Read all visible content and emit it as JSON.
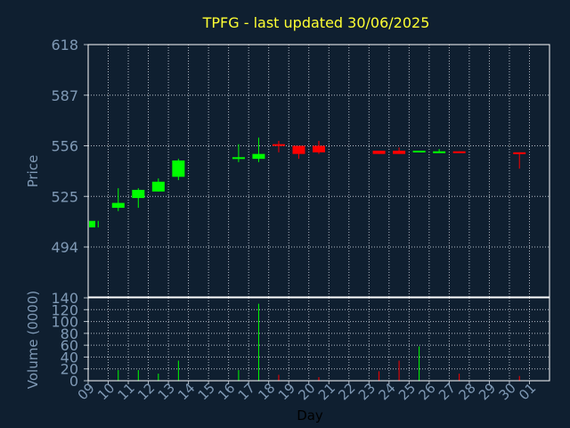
{
  "chart_data": [
    {
      "type": "candlestick",
      "title": "TPFG - last updated 30/06/2025",
      "ylabel": "Price",
      "xlabel": "Day",
      "grid": true,
      "ylim": [
        494,
        618
      ],
      "yticks": [
        "618",
        "587",
        "556",
        "525",
        "494"
      ],
      "x_ticks": [
        "09",
        "10",
        "11",
        "12",
        "13",
        "14",
        "15",
        "16",
        "17",
        "18",
        "19",
        "20",
        "21",
        "22",
        "23",
        "24",
        "25",
        "26",
        "27",
        "28",
        "29",
        "30",
        "01"
      ],
      "candles": [
        {
          "x": "09",
          "open": 510,
          "close": 506,
          "high": 510,
          "low": 506,
          "color": "#00ff00"
        },
        {
          "x": "10",
          "open": 518,
          "close": 521,
          "high": 530,
          "low": 516,
          "color": "#00ff00"
        },
        {
          "x": "11",
          "open": 524,
          "close": 529,
          "high": 530,
          "low": 518,
          "color": "#00ff00"
        },
        {
          "x": "12",
          "open": 528,
          "close": 534,
          "high": 536,
          "low": 528,
          "color": "#00ff00"
        },
        {
          "x": "13",
          "open": 537,
          "close": 547,
          "high": 548,
          "low": 535,
          "color": "#00ff00"
        },
        {
          "x": "16",
          "open": 548,
          "close": 549,
          "high": 557,
          "low": 546,
          "color": "#00ff00"
        },
        {
          "x": "17",
          "open": 548,
          "close": 551,
          "high": 561,
          "low": 546,
          "color": "#00ff00"
        },
        {
          "x": "18",
          "open": 557,
          "close": 556,
          "high": 559,
          "low": 552,
          "color": "#ff0000"
        },
        {
          "x": "19",
          "open": 556,
          "close": 551,
          "high": 556,
          "low": 548,
          "color": "#ff0000"
        },
        {
          "x": "20",
          "open": 556,
          "close": 552,
          "high": 559,
          "low": 551,
          "color": "#ff0000"
        },
        {
          "x": "23",
          "open": 553,
          "close": 551,
          "high": 553,
          "low": 551,
          "color": "#ff0000"
        },
        {
          "x": "24",
          "open": 553,
          "close": 551,
          "high": 555,
          "low": 551,
          "color": "#ff0000"
        },
        {
          "x": "25",
          "open": 552,
          "close": 553,
          "high": 553,
          "low": 552,
          "color": "#00ff00"
        },
        {
          "x": "26",
          "open": 552,
          "close": 552.6,
          "high": 554,
          "low": 552,
          "color": "#00ff00"
        },
        {
          "x": "27",
          "open": 552.6,
          "close": 551.6,
          "high": 552.6,
          "low": 551.6,
          "color": "#ff0000"
        },
        {
          "x": "30",
          "open": 552,
          "close": 551,
          "high": 552,
          "low": 542,
          "color": "#ff0000"
        }
      ]
    },
    {
      "type": "bar",
      "ylabel": "Volume (0000)",
      "ylim": [
        0,
        140
      ],
      "yticks": [
        "140",
        "120",
        "100",
        "80",
        "60",
        "40",
        "20",
        "0"
      ],
      "bars": [
        {
          "x": "10",
          "value": 18,
          "color": "#00ff00"
        },
        {
          "x": "11",
          "value": 18,
          "color": "#00ff00"
        },
        {
          "x": "12",
          "value": 12,
          "color": "#00ff00"
        },
        {
          "x": "13",
          "value": 34,
          "color": "#00ff00"
        },
        {
          "x": "16",
          "value": 18,
          "color": "#00ff00"
        },
        {
          "x": "17",
          "value": 130,
          "color": "#00ff00"
        },
        {
          "x": "18",
          "value": 10,
          "color": "#ff0000"
        },
        {
          "x": "20",
          "value": 6,
          "color": "#ff0000"
        },
        {
          "x": "23",
          "value": 16,
          "color": "#ff0000"
        },
        {
          "x": "24",
          "value": 34,
          "color": "#ff0000"
        },
        {
          "x": "25",
          "value": 58,
          "color": "#00ff00"
        },
        {
          "x": "27",
          "value": 12,
          "color": "#ff0000"
        },
        {
          "x": "30",
          "value": 8,
          "color": "#ff0000"
        }
      ]
    }
  ],
  "colors": {
    "background": "#0f1f30",
    "title": "#ffff33",
    "axis_text": "#7f99b5",
    "grid": "#b5bfc9",
    "up": "#00ff00",
    "down": "#ff0000"
  }
}
